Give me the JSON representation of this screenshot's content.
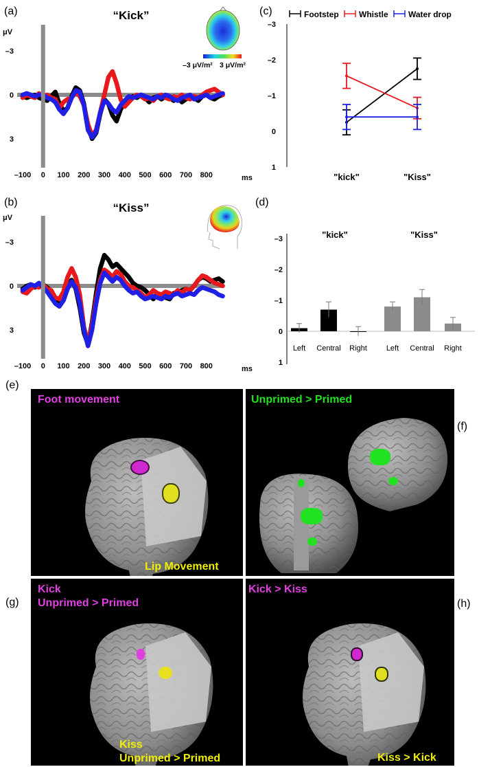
{
  "panel_labels": {
    "a": "(a)",
    "b": "(b)",
    "c": "(c)",
    "d": "(d)",
    "e": "(e)",
    "f": "(f)",
    "g": "(g)",
    "h": "(h)"
  },
  "panel_a": {
    "title": "“Kick”",
    "y_unit": "μV",
    "x_unit": "ms",
    "y_ticks": [
      "–3",
      "0",
      "3"
    ],
    "x_ticks": [
      "–100",
      "0",
      "100",
      "200",
      "300",
      "400",
      "500",
      "600",
      "700",
      "800"
    ],
    "colorbar_min": "–3 μV/m²",
    "colorbar_max": "3 μV/m²"
  },
  "panel_b": {
    "title": "“Kiss”",
    "y_unit": "μV",
    "x_unit": "ms",
    "y_ticks": [
      "–3",
      "0",
      "3"
    ],
    "x_ticks": [
      "–100",
      "0",
      "100",
      "200",
      "300",
      "400",
      "500",
      "600",
      "700",
      "800"
    ]
  },
  "panel_c": {
    "legend": [
      "Footstep",
      "Whistle",
      "Water drop"
    ],
    "y_ticks": [
      "–3",
      "–2",
      "–1",
      "0",
      "1"
    ],
    "categories": [
      "\"kick\"",
      "\"Kiss\""
    ]
  },
  "panel_d": {
    "y_ticks": [
      "–3",
      "–2",
      "–1",
      "0",
      "1"
    ],
    "group_labels": [
      "\"kick\"",
      "\"Kiss\""
    ],
    "bar_labels": [
      "Left",
      "Central",
      "Right",
      "Left",
      "Central",
      "Right"
    ]
  },
  "brain_labels": {
    "e_top": "Foot movement",
    "e_bottom": "Lip Movement",
    "f_top": "Unprimed > Primed",
    "g_top_1": "Kick",
    "g_top_2": "Unprimed > Primed",
    "g_bottom_1": "Kiss",
    "g_bottom_2": "Unprimed > Primed",
    "h_top": "Kick > Kiss",
    "h_bottom": "Kiss > Kick"
  },
  "colors": {
    "black": "#000000",
    "red": "#e8191c",
    "blue": "#1f1fe6",
    "grey_bar": "#8c8c8c",
    "magenta": "#e040e0",
    "yellow": "#f0f000",
    "green": "#22e022"
  },
  "chart_data": [
    {
      "type": "line",
      "title": "“Kick”",
      "ylabel": "μV",
      "xlabel": "ms",
      "xlim": [
        -130,
        900
      ],
      "ylim": [
        -5,
        5
      ],
      "y_inverted": true,
      "x": [
        -100,
        -80,
        -60,
        -40,
        -20,
        0,
        20,
        40,
        60,
        80,
        100,
        120,
        140,
        160,
        180,
        200,
        220,
        240,
        260,
        280,
        300,
        320,
        340,
        360,
        380,
        400,
        420,
        440,
        460,
        480,
        500,
        520,
        540,
        560,
        580,
        600,
        620,
        640,
        660,
        680,
        700,
        720,
        740,
        760,
        780,
        800,
        820,
        840,
        860,
        880
      ],
      "series": [
        {
          "name": "Footstep",
          "color": "#000000",
          "values": [
            0.1,
            0.2,
            0.1,
            0.0,
            0.2,
            0.3,
            0.4,
            0.1,
            -0.2,
            0.6,
            1.1,
            0.9,
            0.1,
            -0.5,
            -0.3,
            0.6,
            2.2,
            3.0,
            2.6,
            1.3,
            0.3,
            0.6,
            1.4,
            1.8,
            1.0,
            0.5,
            0.3,
            0.1,
            0.2,
            0.0,
            0.2,
            0.5,
            0.2,
            0.1,
            0.3,
            0.1,
            0.2,
            0.4,
            0.2,
            0.5,
            0.3,
            0.1,
            0.2,
            0.4,
            0.1,
            0.0,
            0.2,
            0.3,
            0.1,
            0.0
          ]
        },
        {
          "name": "Whistle",
          "color": "#e8191c",
          "values": [
            0.2,
            0.0,
            0.1,
            0.2,
            -0.1,
            0.1,
            0.0,
            0.2,
            0.3,
            0.9,
            0.5,
            0.3,
            0.2,
            -0.2,
            0.1,
            0.7,
            2.0,
            2.8,
            2.4,
            1.2,
            0.0,
            -1.2,
            -1.6,
            -0.8,
            0.3,
            0.8,
            0.5,
            0.2,
            0.0,
            0.1,
            0.3,
            0.2,
            0.4,
            0.1,
            0.0,
            0.2,
            0.3,
            0.1,
            0.2,
            0.0,
            0.2,
            0.3,
            0.1,
            0.2,
            0.0,
            -0.2,
            -0.3,
            -0.4,
            -0.2,
            0.0
          ]
        },
        {
          "name": "Water drop",
          "color": "#1f1fe6",
          "values": [
            0.0,
            -0.1,
            0.0,
            0.1,
            0.0,
            0.0,
            0.2,
            0.3,
            0.5,
            1.0,
            1.3,
            0.9,
            0.2,
            -0.3,
            -0.2,
            0.7,
            2.4,
            2.9,
            2.5,
            1.2,
            0.4,
            0.6,
            1.0,
            1.2,
            0.7,
            0.4,
            0.1,
            0.2,
            0.1,
            0.0,
            0.1,
            0.2,
            0.3,
            0.1,
            0.2,
            0.0,
            0.1,
            0.3,
            0.4,
            0.2,
            0.1,
            0.0,
            0.3,
            0.2,
            0.1,
            0.0,
            0.2,
            0.1,
            0.0,
            -0.1
          ]
        }
      ]
    },
    {
      "type": "line",
      "title": "“Kiss”",
      "ylabel": "μV",
      "xlabel": "ms",
      "xlim": [
        -130,
        900
      ],
      "ylim": [
        -5,
        5
      ],
      "y_inverted": true,
      "x": [
        -100,
        -80,
        -60,
        -40,
        -20,
        0,
        20,
        40,
        60,
        80,
        100,
        120,
        140,
        160,
        180,
        200,
        220,
        240,
        260,
        280,
        300,
        320,
        340,
        360,
        380,
        400,
        420,
        440,
        460,
        480,
        500,
        520,
        540,
        560,
        580,
        600,
        620,
        640,
        660,
        680,
        700,
        720,
        740,
        760,
        780,
        800,
        820,
        840,
        860,
        880
      ],
      "series": [
        {
          "name": "Footstep",
          "color": "#000000",
          "values": [
            0.2,
            0.0,
            -0.1,
            0.1,
            0.0,
            -0.1,
            0.1,
            0.4,
            1.0,
            1.2,
            0.6,
            -0.2,
            -0.4,
            0.2,
            1.5,
            3.2,
            4.0,
            2.5,
            0.5,
            -1.2,
            -2.1,
            -1.8,
            -1.3,
            -1.5,
            -1.2,
            -0.9,
            -0.6,
            -0.2,
            0.0,
            0.1,
            0.3,
            0.6,
            0.9,
            0.5,
            0.6,
            0.8,
            0.9,
            0.5,
            0.4,
            0.3,
            0.2,
            0.3,
            0.0,
            -0.4,
            -0.6,
            -0.5,
            -0.3,
            -0.4,
            -0.5,
            -0.3
          ]
        },
        {
          "name": "Whistle",
          "color": "#e8191c",
          "values": [
            0.4,
            0.5,
            0.2,
            0.0,
            0.1,
            -0.1,
            0.2,
            0.3,
            0.8,
            0.9,
            0.4,
            -0.6,
            -1.2,
            -0.6,
            0.6,
            2.8,
            3.9,
            2.7,
            0.9,
            -0.4,
            -1.1,
            -0.9,
            -0.6,
            -1.0,
            -0.8,
            -0.3,
            0.0,
            0.1,
            0.3,
            0.5,
            0.8,
            0.6,
            0.3,
            0.5,
            0.6,
            0.4,
            0.5,
            0.6,
            0.3,
            0.5,
            0.2,
            0.3,
            0.0,
            -0.4,
            -0.7,
            -0.6,
            -0.4,
            -0.2,
            -0.1,
            0.0
          ]
        },
        {
          "name": "Water drop",
          "color": "#1f1fe6",
          "values": [
            0.3,
            0.1,
            -0.1,
            0.0,
            -0.2,
            0.1,
            0.4,
            0.8,
            1.2,
            1.4,
            1.0,
            0.2,
            -0.3,
            0.1,
            1.2,
            3.0,
            4.1,
            3.0,
            1.2,
            -0.2,
            -0.9,
            -0.6,
            -0.3,
            -0.6,
            -0.4,
            0.0,
            0.3,
            0.5,
            0.4,
            0.7,
            0.9,
            0.8,
            0.7,
            0.8,
            0.9,
            0.7,
            0.8,
            0.6,
            0.5,
            0.7,
            0.6,
            0.5,
            0.6,
            0.3,
            0.1,
            0.2,
            0.3,
            0.4,
            0.6,
            0.7
          ]
        }
      ]
    },
    {
      "type": "line",
      "categories": [
        "\"kick\"",
        "\"Kiss\""
      ],
      "ylim": [
        -3,
        1
      ],
      "y_inverted": true,
      "series": [
        {
          "name": "Footstep",
          "color": "#000000",
          "values": [
            -0.25,
            -1.75
          ],
          "errors": [
            0.35,
            0.3
          ]
        },
        {
          "name": "Whistle",
          "color": "#e8191c",
          "values": [
            -1.55,
            -0.65
          ],
          "errors": [
            0.35,
            0.3
          ]
        },
        {
          "name": "Water drop",
          "color": "#1f1fe6",
          "values": [
            -0.4,
            -0.4
          ],
          "errors": [
            0.35,
            0.35
          ]
        }
      ]
    },
    {
      "type": "bar",
      "categories": [
        "Left",
        "Central",
        "Right",
        "Left",
        "Central",
        "Right"
      ],
      "groups": [
        "\"kick\"",
        "\"Kiss\""
      ],
      "ylim": [
        -3,
        1
      ],
      "y_inverted": true,
      "values": [
        -0.1,
        -0.7,
        0.0,
        -0.8,
        -1.1,
        -0.25
      ],
      "errors": [
        0.15,
        0.25,
        0.15,
        0.15,
        0.25,
        0.2
      ],
      "bar_colors": [
        "#000000",
        "#000000",
        "#000000",
        "#8c8c8c",
        "#8c8c8c",
        "#8c8c8c"
      ]
    }
  ]
}
